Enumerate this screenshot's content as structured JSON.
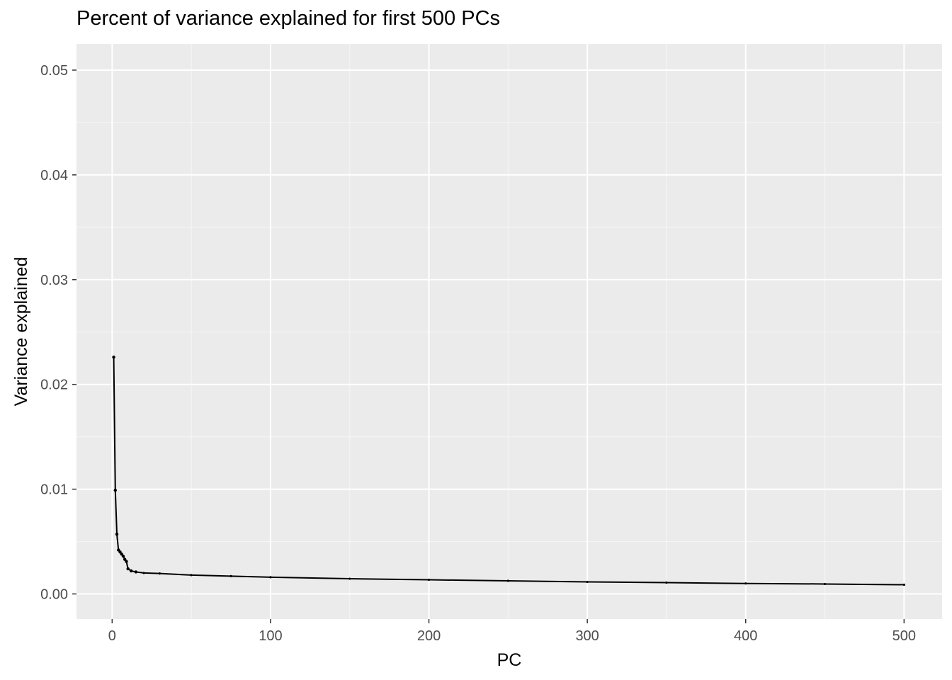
{
  "chart_data": {
    "type": "line",
    "title": "Percent of variance explained for first 500 PCs",
    "xlabel": "PC",
    "ylabel": "Variance explained",
    "xlim": [
      -22.5,
      524
    ],
    "ylim": [
      -0.0024,
      0.0525
    ],
    "x_ticks": [
      0,
      100,
      200,
      300,
      400,
      500
    ],
    "y_ticks": [
      0.0,
      0.01,
      0.02,
      0.03,
      0.04,
      0.05
    ],
    "x_tick_labels": [
      "0",
      "100",
      "200",
      "300",
      "400",
      "500"
    ],
    "y_tick_labels": [
      "0.00",
      "0.01",
      "0.02",
      "0.03",
      "0.04",
      "0.05"
    ],
    "grid": true,
    "colors": {
      "panel_background": "#ebebeb",
      "grid_major": "#ffffff",
      "grid_minor": "#f5f5f5",
      "line": "#000000",
      "tick_text": "#4d4d4d"
    },
    "series": [
      {
        "x": [
          1,
          2,
          3,
          4,
          5,
          6,
          7,
          8,
          9,
          10,
          12,
          15,
          20,
          30,
          50,
          75,
          100,
          150,
          200,
          250,
          300,
          350,
          400,
          450,
          500
        ],
        "values": [
          0.0226,
          0.0099,
          0.0057,
          0.0042,
          0.004,
          0.0038,
          0.0036,
          0.0033,
          0.0031,
          0.0024,
          0.0022,
          0.0021,
          0.002,
          0.00195,
          0.0018,
          0.0017,
          0.0016,
          0.00145,
          0.00135,
          0.00125,
          0.00115,
          0.00108,
          0.001,
          0.00095,
          0.00088
        ]
      }
    ]
  }
}
